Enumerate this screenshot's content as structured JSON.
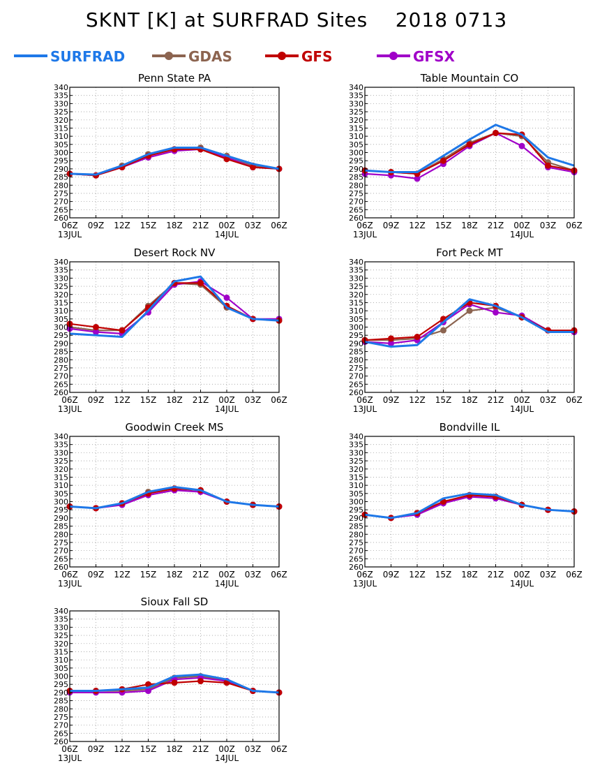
{
  "title": "SKNT [K] at SURFRAD Sites    2018 0713",
  "colors": {
    "SURFRAD": "#1e78e8",
    "GDAS": "#8c6450",
    "GFS": "#c00000",
    "GFSX": "#a000c8"
  },
  "legend": [
    {
      "name": "SURFRAD",
      "color": "#1e78e8",
      "marker": false
    },
    {
      "name": "GDAS",
      "color": "#8c6450",
      "marker": true
    },
    {
      "name": "GFS",
      "color": "#c00000",
      "marker": true
    },
    {
      "name": "GFSX",
      "color": "#a000c8",
      "marker": true
    }
  ],
  "x_ticks": [
    "06Z",
    "09Z",
    "12Z",
    "15Z",
    "18Z",
    "21Z",
    "00Z",
    "03Z",
    "06Z"
  ],
  "x_date_labels": [
    {
      "hour": 0,
      "label": "13JUL"
    },
    {
      "hour": 18,
      "label": "14JUL"
    }
  ],
  "chart_data": [
    {
      "type": "line",
      "title": "Penn State PA",
      "xlabel": "",
      "ylabel": "",
      "ylim": [
        260,
        340
      ],
      "yticks_step": 5,
      "grid": true,
      "x_hours": [
        0,
        3,
        6,
        9,
        12,
        15,
        18,
        21,
        24
      ],
      "series": [
        {
          "name": "SURFRAD",
          "values": [
            287,
            286.5,
            292,
            299,
            303,
            303,
            298,
            293,
            290
          ],
          "markers": false
        },
        {
          "name": "GDAS",
          "values": [
            287,
            286,
            292,
            299,
            302,
            303,
            298,
            292,
            290
          ],
          "markers": true
        },
        {
          "name": "GFS",
          "values": [
            287,
            286,
            291,
            298,
            302,
            302,
            296,
            291,
            290
          ],
          "markers": true
        },
        {
          "name": "GFSX",
          "values": [
            287,
            286,
            291,
            297,
            301,
            302,
            297,
            291,
            290
          ],
          "markers": true
        }
      ]
    },
    {
      "type": "line",
      "title": "Table Mountain CO",
      "xlabel": "",
      "ylabel": "",
      "ylim": [
        260,
        340
      ],
      "yticks_step": 5,
      "grid": true,
      "x_hours": [
        0,
        3,
        6,
        9,
        12,
        15,
        18,
        21,
        24
      ],
      "series": [
        {
          "name": "SURFRAD",
          "values": [
            289,
            288,
            288,
            298,
            308,
            317,
            311,
            297,
            292
          ],
          "markers": false
        },
        {
          "name": "GDAS",
          "values": [
            289,
            288,
            287,
            296,
            306,
            312,
            310,
            294,
            289
          ],
          "markers": true
        },
        {
          "name": "GFS",
          "values": [
            289,
            288,
            287,
            295,
            305,
            312,
            311,
            292,
            289
          ],
          "markers": true
        },
        {
          "name": "GFSX",
          "values": [
            287,
            286,
            284,
            293,
            304,
            312,
            304,
            291,
            288
          ],
          "markers": true
        }
      ]
    },
    {
      "type": "line",
      "title": "Desert Rock NV",
      "xlabel": "",
      "ylabel": "",
      "ylim": [
        260,
        340
      ],
      "yticks_step": 5,
      "grid": true,
      "x_hours": [
        0,
        3,
        6,
        9,
        12,
        15,
        18,
        21,
        24
      ],
      "series": [
        {
          "name": "SURFRAD",
          "values": [
            296,
            295,
            294,
            310,
            328,
            331,
            312,
            305,
            304
          ],
          "markers": false
        },
        {
          "name": "GDAS",
          "values": [
            300,
            298,
            298,
            313,
            327,
            326,
            312,
            305,
            304
          ],
          "markers": true
        },
        {
          "name": "GFS",
          "values": [
            302,
            300,
            298,
            312,
            327,
            327,
            313,
            305,
            304
          ],
          "markers": true
        },
        {
          "name": "GFSX",
          "values": [
            299,
            297,
            296,
            309,
            326,
            328,
            318,
            305,
            305
          ],
          "markers": true
        }
      ]
    },
    {
      "type": "line",
      "title": "Fort Peck MT",
      "xlabel": "",
      "ylabel": "",
      "ylim": [
        260,
        340
      ],
      "yticks_step": 5,
      "grid": true,
      "x_hours": [
        0,
        3,
        6,
        9,
        12,
        15,
        18,
        21,
        24
      ],
      "series": [
        {
          "name": "SURFRAD",
          "values": [
            291,
            288,
            289,
            303,
            317,
            313,
            306,
            297,
            297
          ],
          "markers": false
        },
        {
          "name": "GDAS",
          "values": [
            292,
            292,
            293,
            298,
            310,
            312,
            306,
            298,
            297
          ],
          "markers": true
        },
        {
          "name": "GFS",
          "values": [
            292,
            293,
            294,
            305,
            315,
            313,
            306,
            298,
            298
          ],
          "markers": true
        },
        {
          "name": "GFSX",
          "values": [
            291,
            290,
            292,
            303,
            314,
            309,
            307,
            298,
            297
          ],
          "markers": true
        }
      ]
    },
    {
      "type": "line",
      "title": "Goodwin Creek MS",
      "xlabel": "",
      "ylabel": "",
      "ylim": [
        260,
        340
      ],
      "yticks_step": 5,
      "grid": true,
      "x_hours": [
        0,
        3,
        6,
        9,
        12,
        15,
        18,
        21,
        24
      ],
      "series": [
        {
          "name": "SURFRAD",
          "values": [
            297,
            296,
            299,
            306,
            309,
            307,
            300,
            298,
            297
          ],
          "markers": false
        },
        {
          "name": "GDAS",
          "values": [
            297,
            296,
            299,
            306,
            308,
            307,
            300,
            298,
            297
          ],
          "markers": true
        },
        {
          "name": "GFS",
          "values": [
            297,
            296,
            299,
            305,
            308,
            307,
            300,
            298,
            297
          ],
          "markers": true
        },
        {
          "name": "GFSX",
          "values": [
            297,
            296,
            298,
            304,
            307,
            306,
            300,
            298,
            297
          ],
          "markers": true
        }
      ]
    },
    {
      "type": "line",
      "title": "Bondville IL",
      "xlabel": "",
      "ylabel": "",
      "ylim": [
        260,
        340
      ],
      "yticks_step": 5,
      "grid": true,
      "x_hours": [
        0,
        3,
        6,
        9,
        12,
        15,
        18,
        21,
        24
      ],
      "series": [
        {
          "name": "SURFRAD",
          "values": [
            292,
            290,
            293,
            302,
            305,
            304,
            298,
            295,
            294
          ],
          "markers": false
        },
        {
          "name": "GDAS",
          "values": [
            292,
            290,
            293,
            300,
            304,
            303,
            298,
            295,
            294
          ],
          "markers": true
        },
        {
          "name": "GFS",
          "values": [
            292,
            290,
            293,
            300,
            304,
            303,
            298,
            295,
            294
          ],
          "markers": true
        },
        {
          "name": "GFSX",
          "values": [
            292,
            290,
            292,
            299,
            303,
            302,
            298,
            295,
            294
          ],
          "markers": true
        }
      ]
    },
    {
      "type": "line",
      "title": "Sioux Fall SD",
      "xlabel": "",
      "ylabel": "",
      "ylim": [
        260,
        340
      ],
      "yticks_step": 5,
      "grid": true,
      "x_hours": [
        0,
        3,
        6,
        9,
        12,
        15,
        18,
        21,
        24
      ],
      "series": [
        {
          "name": "SURFRAD",
          "values": [
            291,
            291,
            292,
            293,
            300,
            301,
            298,
            291,
            290
          ],
          "markers": false
        },
        {
          "name": "GDAS",
          "values": [
            291,
            291,
            291,
            292,
            299,
            300,
            297,
            291,
            290
          ],
          "markers": true
        },
        {
          "name": "GFS",
          "values": [
            291,
            291,
            292,
            295,
            296,
            297,
            296,
            291,
            290
          ],
          "markers": true
        },
        {
          "name": "GFSX",
          "values": [
            290,
            290,
            290,
            291,
            298,
            299,
            297,
            291,
            290
          ],
          "markers": true
        }
      ]
    }
  ]
}
